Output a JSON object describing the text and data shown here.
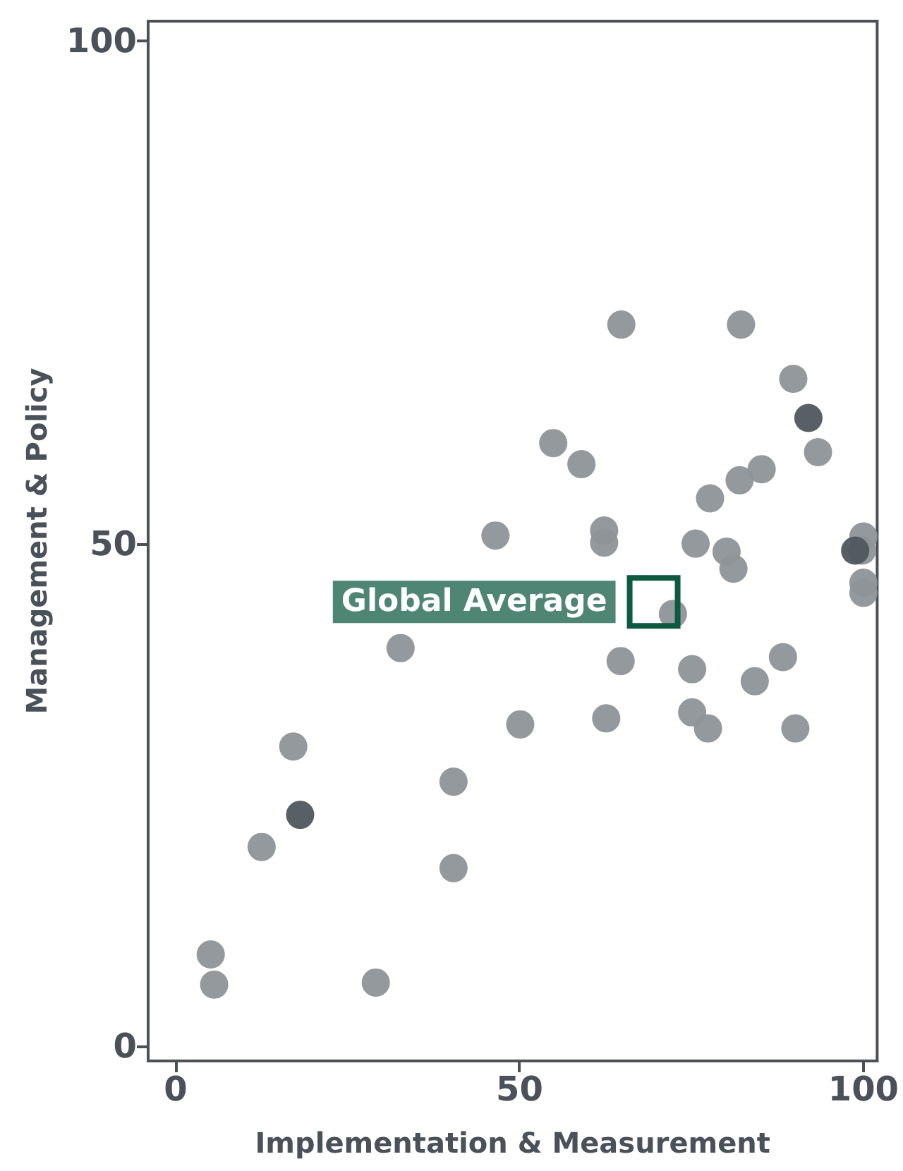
{
  "chart_data": {
    "type": "scatter",
    "xlabel": "Implementation & Measurement",
    "ylabel": "Management & Policy",
    "xlim": [
      -4,
      102
    ],
    "ylim": [
      -1.5,
      102
    ],
    "xticks": [
      0,
      50,
      100
    ],
    "yticks": [
      0,
      50,
      100
    ],
    "grid": false,
    "marker": "circle",
    "annotations": [
      {
        "text": "Global Average",
        "x": 69.5,
        "y": 44.2
      }
    ],
    "series": [
      {
        "color": "#8e9499",
        "x": [
          64.8,
          82.2,
          89.8,
          93.4,
          54.9,
          59,
          85.2,
          82,
          77.7,
          46.5,
          62.3,
          62.3,
          75.6,
          80.1,
          81.1,
          100,
          99.8,
          100,
          100,
          72.3,
          32.7,
          64.7,
          75.1,
          88.3,
          84.2,
          50.1,
          62.6,
          75.1,
          77.4,
          90.1,
          17.1,
          40.4,
          12.5,
          40.4,
          5.1,
          5.6,
          29.1
        ],
        "values": [
          71.8,
          71.8,
          66.4,
          59.1,
          60,
          57.9,
          57.4,
          56.3,
          54.5,
          50.8,
          51.3,
          50.1,
          50,
          49.2,
          47.5,
          50.7,
          49.3,
          46.1,
          45.1,
          43,
          39.6,
          38.3,
          37.5,
          38.7,
          36.3,
          32,
          32.6,
          33.2,
          31.6,
          31.6,
          29.8,
          26.3,
          19.8,
          17.7,
          9.1,
          6.1,
          6.3
        ]
      },
      {
        "color": "#50575d",
        "x": [
          92,
          98.8,
          18.1
        ],
        "values": [
          62.5,
          49.3,
          23
        ]
      }
    ]
  }
}
